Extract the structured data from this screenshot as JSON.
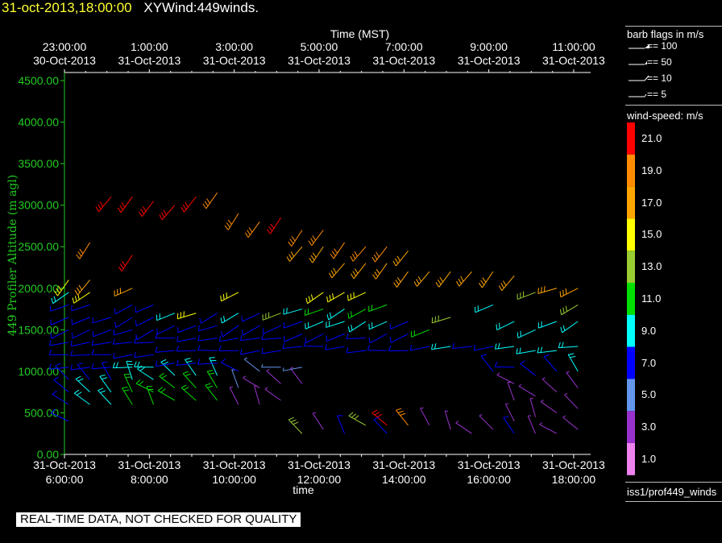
{
  "header": {
    "date": "31-oct-2013,18:00:00",
    "name": "XYWind:449winds."
  },
  "qc_banner": "REAL-TIME DATA, NOT CHECKED FOR QUALITY",
  "legend": {
    "barb_title": "barb flags in m/s",
    "barb_flags": [
      {
        "label": "== 100",
        "kind": "pennant"
      },
      {
        "label": "== 50",
        "kind": "pennant-small"
      },
      {
        "label": "== 10",
        "kind": "full"
      },
      {
        "label": "== 5",
        "kind": "half"
      }
    ],
    "colorbar_title": "wind-speed: m/s",
    "colorbar": [
      {
        "label": "21.0",
        "color": "#ff0000"
      },
      {
        "label": "19.0",
        "color": "#ff8c00"
      },
      {
        "label": "17.0",
        "color": "#ffa500"
      },
      {
        "label": "15.0",
        "color": "#ffff00"
      },
      {
        "label": "13.0",
        "color": "#9acd32"
      },
      {
        "label": "11.0",
        "color": "#00e000"
      },
      {
        "label": "9.0",
        "color": "#00ffff"
      },
      {
        "label": "7.0",
        "color": "#0000ff"
      },
      {
        "label": "5.0",
        "color": "#6495ed"
      },
      {
        "label": "3.0",
        "color": "#9932cc"
      },
      {
        "label": "1.0",
        "color": "#ee82ee"
      }
    ],
    "source_id": "iss1/prof449_winds"
  },
  "chart_data": {
    "type": "scatter",
    "subtype": "wind-barbs",
    "xlabel": "time",
    "x2label": "Time (MST)",
    "ylabel": "449 Profiler Altitude (m agl)",
    "ylim": [
      0,
      4500
    ],
    "xlim": [
      6,
      18.4
    ],
    "yticks": [
      "0.00",
      "500.00",
      "1000.00",
      "1500.00",
      "2000.00",
      "2500.00",
      "3000.00",
      "3500.00",
      "4000.00",
      "4500.00"
    ],
    "xticks_bottom": [
      {
        "line1": "31-Oct-2013",
        "line2": "6:00:00"
      },
      {
        "line1": "31-Oct-2013",
        "line2": "8:00:00"
      },
      {
        "line1": "31-Oct-2013",
        "line2": "10:00:00"
      },
      {
        "line1": "31-Oct-2013",
        "line2": "12:00:00"
      },
      {
        "line1": "31-Oct-2013",
        "line2": "14:00:00"
      },
      {
        "line1": "31-Oct-2013",
        "line2": "16:00:00"
      },
      {
        "line1": "31-Oct-2013",
        "line2": "18:00:00"
      }
    ],
    "xticks_top": [
      {
        "line1": "23:00:00",
        "line2": "30-Oct-2013"
      },
      {
        "line1": "1:00:00",
        "line2": "31-Oct-2013"
      },
      {
        "line1": "3:00:00",
        "line2": "31-Oct-2013"
      },
      {
        "line1": "5:00:00",
        "line2": "31-Oct-2013"
      },
      {
        "line1": "7:00:00",
        "line2": "31-Oct-2013"
      },
      {
        "line1": "9:00:00",
        "line2": "31-Oct-2013"
      },
      {
        "line1": "11:00:00",
        "line2": "31-Oct-2013"
      }
    ],
    "columns": [
      {
        "t": 6.1,
        "profile": [
          [
            400,
            7
          ],
          [
            600,
            7
          ],
          [
            750,
            7
          ],
          [
            900,
            7
          ],
          [
            1050,
            7
          ],
          [
            1200,
            7
          ],
          [
            1350,
            7
          ],
          [
            1500,
            7
          ],
          [
            1650,
            7
          ],
          [
            1800,
            7
          ],
          [
            1950,
            9
          ],
          [
            2100,
            15
          ]
        ]
      },
      {
        "t": 6.6,
        "profile": [
          [
            600,
            9
          ],
          [
            750,
            9
          ],
          [
            900,
            7
          ],
          [
            1050,
            7
          ],
          [
            1200,
            7
          ],
          [
            1350,
            7
          ],
          [
            1500,
            7
          ],
          [
            1650,
            7
          ],
          [
            1800,
            7
          ],
          [
            1950,
            15
          ],
          [
            2100,
            17
          ],
          [
            2550,
            19
          ]
        ]
      },
      {
        "t": 7.1,
        "profile": [
          [
            600,
            9
          ],
          [
            750,
            9
          ],
          [
            900,
            7
          ],
          [
            1050,
            7
          ],
          [
            1200,
            7
          ],
          [
            1350,
            7
          ],
          [
            1500,
            7
          ],
          [
            1650,
            7
          ],
          [
            3100,
            21
          ]
        ]
      },
      {
        "t": 7.6,
        "profile": [
          [
            600,
            11
          ],
          [
            750,
            11
          ],
          [
            900,
            9
          ],
          [
            1050,
            9
          ],
          [
            1200,
            7
          ],
          [
            1350,
            7
          ],
          [
            1500,
            7
          ],
          [
            1650,
            7
          ],
          [
            1800,
            7
          ],
          [
            2000,
            17
          ],
          [
            2400,
            21
          ],
          [
            3100,
            21
          ]
        ]
      },
      {
        "t": 8.1,
        "profile": [
          [
            600,
            11
          ],
          [
            750,
            11
          ],
          [
            900,
            9
          ],
          [
            1050,
            9
          ],
          [
            1200,
            7
          ],
          [
            1350,
            7
          ],
          [
            1500,
            7
          ],
          [
            1650,
            7
          ],
          [
            1800,
            7
          ],
          [
            3050,
            21
          ]
        ]
      },
      {
        "t": 8.6,
        "profile": [
          [
            650,
            11
          ],
          [
            800,
            11
          ],
          [
            950,
            9
          ],
          [
            1100,
            7
          ],
          [
            1250,
            7
          ],
          [
            1400,
            7
          ],
          [
            1550,
            7
          ],
          [
            1700,
            9
          ],
          [
            3000,
            21
          ]
        ]
      },
      {
        "t": 9.1,
        "profile": [
          [
            650,
            11
          ],
          [
            800,
            11
          ],
          [
            950,
            9
          ],
          [
            1100,
            7
          ],
          [
            1250,
            7
          ],
          [
            1400,
            7
          ],
          [
            1550,
            7
          ],
          [
            1700,
            15
          ],
          [
            3100,
            21
          ]
        ]
      },
      {
        "t": 9.6,
        "profile": [
          [
            650,
            11
          ],
          [
            800,
            11
          ],
          [
            950,
            9
          ],
          [
            1100,
            7
          ],
          [
            1250,
            7
          ],
          [
            1400,
            7
          ],
          [
            1550,
            7
          ],
          [
            1700,
            7
          ],
          [
            3150,
            19
          ]
        ]
      },
      {
        "t": 10.1,
        "profile": [
          [
            600,
            3
          ],
          [
            800,
            5
          ],
          [
            1000,
            7
          ],
          [
            1250,
            7
          ],
          [
            1400,
            7
          ],
          [
            1550,
            7
          ],
          [
            1700,
            9
          ],
          [
            1950,
            15
          ],
          [
            2900,
            19
          ]
        ]
      },
      {
        "t": 10.6,
        "profile": [
          [
            600,
            3
          ],
          [
            800,
            3
          ],
          [
            1000,
            5
          ],
          [
            1250,
            7
          ],
          [
            1400,
            7
          ],
          [
            1550,
            7
          ],
          [
            1700,
            7
          ],
          [
            2800,
            19
          ]
        ]
      },
      {
        "t": 11.1,
        "profile": [
          [
            650,
            3
          ],
          [
            850,
            3
          ],
          [
            1050,
            5
          ],
          [
            1250,
            7
          ],
          [
            1400,
            7
          ],
          [
            1550,
            7
          ],
          [
            1700,
            13
          ],
          [
            2850,
            21
          ]
        ]
      },
      {
        "t": 11.6,
        "profile": [
          [
            250,
            13
          ],
          [
            850,
            3
          ],
          [
            1050,
            5
          ],
          [
            1300,
            7
          ],
          [
            1450,
            7
          ],
          [
            1600,
            7
          ],
          [
            1750,
            9
          ],
          [
            2500,
            17
          ],
          [
            2700,
            19
          ]
        ]
      },
      {
        "t": 12.1,
        "profile": [
          [
            300,
            3
          ],
          [
            1300,
            7
          ],
          [
            1450,
            7
          ],
          [
            1600,
            9
          ],
          [
            1750,
            11
          ],
          [
            1950,
            15
          ],
          [
            2500,
            17
          ],
          [
            2700,
            19
          ]
        ]
      },
      {
        "t": 12.6,
        "profile": [
          [
            250,
            7
          ],
          [
            1300,
            7
          ],
          [
            1450,
            7
          ],
          [
            1600,
            9
          ],
          [
            1750,
            9
          ],
          [
            1950,
            15
          ],
          [
            2300,
            17
          ],
          [
            2550,
            19
          ]
        ]
      },
      {
        "t": 13.1,
        "profile": [
          [
            350,
            13
          ],
          [
            1250,
            7
          ],
          [
            1400,
            7
          ],
          [
            1600,
            9
          ],
          [
            1750,
            11
          ],
          [
            1950,
            15
          ],
          [
            2300,
            17
          ],
          [
            2500,
            19
          ]
        ]
      },
      {
        "t": 13.6,
        "profile": [
          [
            350,
            21
          ],
          [
            250,
            7
          ],
          [
            1250,
            7
          ],
          [
            1450,
            7
          ],
          [
            1600,
            9
          ],
          [
            1800,
            11
          ],
          [
            2300,
            17
          ],
          [
            2500,
            19
          ]
        ]
      },
      {
        "t": 14.1,
        "profile": [
          [
            350,
            19
          ],
          [
            1250,
            7
          ],
          [
            1450,
            7
          ],
          [
            1600,
            7
          ],
          [
            2200,
            17
          ],
          [
            2450,
            17
          ]
        ]
      },
      {
        "t": 14.6,
        "profile": [
          [
            350,
            3
          ],
          [
            1300,
            7
          ],
          [
            1500,
            11
          ],
          [
            2200,
            17
          ]
        ]
      },
      {
        "t": 15.1,
        "profile": [
          [
            300,
            3
          ],
          [
            1300,
            9
          ],
          [
            1650,
            13
          ],
          [
            2200,
            17
          ]
        ]
      },
      {
        "t": 15.6,
        "profile": [
          [
            250,
            3
          ],
          [
            1300,
            7
          ],
          [
            2200,
            17
          ]
        ]
      },
      {
        "t": 16.1,
        "profile": [
          [
            300,
            3
          ],
          [
            1000,
            7
          ],
          [
            1300,
            7
          ],
          [
            1800,
            9
          ],
          [
            2200,
            17
          ]
        ]
      },
      {
        "t": 16.6,
        "profile": [
          [
            250,
            7
          ],
          [
            400,
            3
          ],
          [
            650,
            3
          ],
          [
            850,
            3
          ],
          [
            1050,
            7
          ],
          [
            1300,
            9
          ],
          [
            1600,
            9
          ],
          [
            2150,
            17
          ]
        ]
      },
      {
        "t": 17.1,
        "profile": [
          [
            250,
            3
          ],
          [
            450,
            3
          ],
          [
            700,
            3
          ],
          [
            950,
            7
          ],
          [
            1250,
            9
          ],
          [
            1500,
            9
          ],
          [
            1950,
            13
          ]
        ]
      },
      {
        "t": 17.6,
        "profile": [
          [
            250,
            3
          ],
          [
            500,
            3
          ],
          [
            750,
            3
          ],
          [
            1000,
            7
          ],
          [
            1250,
            9
          ],
          [
            1600,
            9
          ],
          [
            2000,
            17
          ]
        ]
      },
      {
        "t": 18.1,
        "profile": [
          [
            300,
            3
          ],
          [
            550,
            3
          ],
          [
            800,
            3
          ],
          [
            1000,
            9
          ],
          [
            1300,
            9
          ],
          [
            1600,
            9
          ],
          [
            1800,
            13
          ],
          [
            2000,
            17
          ]
        ]
      }
    ]
  }
}
